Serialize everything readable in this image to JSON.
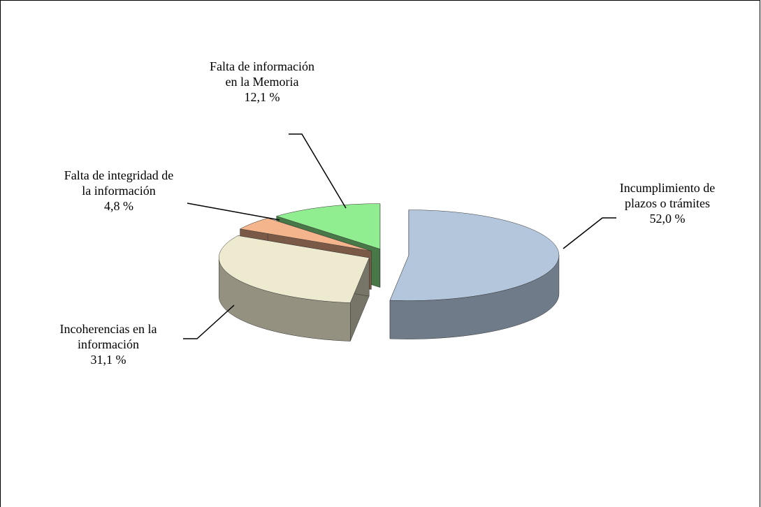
{
  "chart_data": {
    "type": "pie",
    "categories": [
      "Incumplimiento de plazos o trámites",
      "Incoherencias en la información",
      "Falta de integridad de la información",
      "Falta de información en la Memoria"
    ],
    "values": [
      52.0,
      31.1,
      4.8,
      12.1
    ],
    "value_labels": [
      "52,0 %",
      "31,1 %",
      "4,8 %",
      "12,1 %"
    ],
    "colors": [
      "#b3c6dc",
      "#eeeacf",
      "#f4b48c",
      "#90ee90"
    ]
  }
}
